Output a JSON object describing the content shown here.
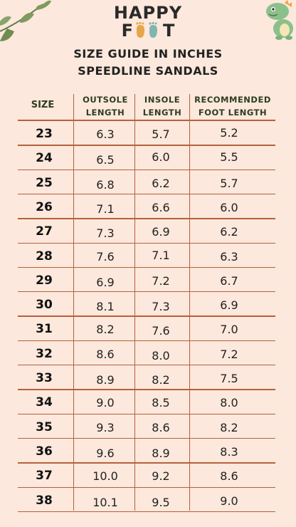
{
  "colors": {
    "background": "#fce8dc",
    "lines": "#b5613b",
    "header_text": "#2f3d20"
  },
  "logo": {
    "line1": "HAPPY",
    "line2_left": "F",
    "line2_right": "T"
  },
  "title": {
    "line1": "SIZE GUIDE IN INCHES",
    "line2": "SPEEDLINE SANDALS"
  },
  "columns": {
    "size": "SIZE",
    "outsole": {
      "line1": "OUTSOLE",
      "line2": "LENGTH"
    },
    "insole": {
      "line1": "INSOLE",
      "line2": "LENGTH"
    },
    "recommended": {
      "line1": "RECOMMENDED",
      "line2": "FOOT LENGTH"
    }
  },
  "rows": [
    {
      "size": "23",
      "outsole": "6.3",
      "insole": "5.7",
      "foot": "5.2"
    },
    {
      "size": "24",
      "outsole": "6.5",
      "insole": "6.0",
      "foot": "5.5"
    },
    {
      "size": "25",
      "outsole": "6.8",
      "insole": "6.2",
      "foot": "5.7"
    },
    {
      "size": "26",
      "outsole": "7.1",
      "insole": "6.6",
      "foot": "6.0"
    },
    {
      "size": "27",
      "outsole": "7.3",
      "insole": "6.9",
      "foot": "6.2"
    },
    {
      "size": "28",
      "outsole": "7.6",
      "insole": "7.1",
      "foot": "6.3"
    },
    {
      "size": "29",
      "outsole": "6.9",
      "insole": "7.2",
      "foot": "6.7"
    },
    {
      "size": "30",
      "outsole": "8.1",
      "insole": "7.3",
      "foot": "6.9"
    },
    {
      "size": "31",
      "outsole": "8.2",
      "insole": "7.6",
      "foot": "7.0"
    },
    {
      "size": "32",
      "outsole": "8.6",
      "insole": "8.0",
      "foot": "7.2"
    },
    {
      "size": "33",
      "outsole": "8.9",
      "insole": "8.2",
      "foot": "7.5"
    },
    {
      "size": "34",
      "outsole": "9.0",
      "insole": "8.5",
      "foot": "8.0"
    },
    {
      "size": "35",
      "outsole": "9.3",
      "insole": "8.6",
      "foot": "8.2"
    },
    {
      "size": "36",
      "outsole": "9.6",
      "insole": "8.9",
      "foot": "8.3"
    },
    {
      "size": "37",
      "outsole": "10.0",
      "insole": "9.2",
      "foot": "8.6"
    },
    {
      "size": "38",
      "outsole": "10.1",
      "insole": "9.5",
      "foot": "9.0"
    }
  ]
}
